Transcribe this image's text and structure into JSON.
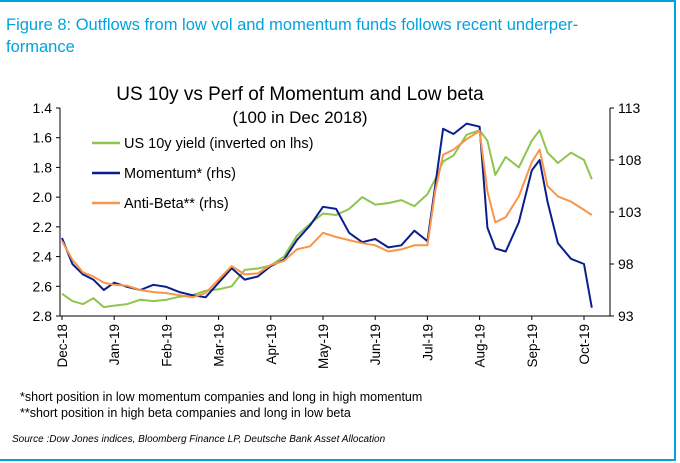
{
  "colors": {
    "brand": "#00a3e0",
    "green": "#8fc44f",
    "navy": "#0b1f8c",
    "orange": "#f7954a"
  },
  "figure_title": "Figure 8: Outflows from low vol and momentum funds follows recent underper-formance",
  "figure_title_line1": "Figure 8: Outflows from low vol and momentum funds follows recent underper-",
  "figure_title_line2": "formance",
  "notes": [
    "*short position in low momentum companies and long in high momentum",
    "**short position in high beta companies and long in low beta"
  ],
  "source": "Source :Dow Jones indices, Bloomberg Finance LP, Deutsche Bank Asset Allocation",
  "chart_data": {
    "type": "line",
    "title": "US 10y vs Perf of Momentum and Low beta",
    "subtitle": "(100 in Dec 2018)",
    "x_categories": [
      "Dec-18",
      "Jan-19",
      "Feb-19",
      "Mar-19",
      "Apr-19",
      "May-19",
      "Jun-19",
      "Jul-19",
      "Aug-19",
      "Sep-19",
      "Oct-19"
    ],
    "y_left": {
      "ticks": [
        "1.4",
        "1.6",
        "1.8",
        "2.0",
        "2.2",
        "2.4",
        "2.6",
        "2.8"
      ],
      "range": [
        2.8,
        1.4
      ],
      "inverted": true
    },
    "y_right": {
      "ticks": [
        "113",
        "108",
        "103",
        "98",
        "93"
      ],
      "range": [
        93,
        113
      ]
    },
    "legend_position": "top-left",
    "grid": false,
    "series": [
      {
        "name": "US 10y yield (inverted on lhs)",
        "axis": "left",
        "color": "#8fc44f",
        "x": [
          0,
          0.2,
          0.4,
          0.6,
          0.8,
          1.0,
          1.25,
          1.5,
          1.75,
          2.0,
          2.25,
          2.5,
          2.75,
          3.0,
          3.25,
          3.5,
          3.75,
          4.0,
          4.25,
          4.5,
          4.75,
          5.0,
          5.25,
          5.5,
          5.75,
          6.0,
          6.25,
          6.5,
          6.75,
          7.0,
          7.15,
          7.3,
          7.5,
          7.75,
          8.0,
          8.15,
          8.3,
          8.5,
          8.75,
          9.0,
          9.15,
          9.3,
          9.5,
          9.75,
          10.0,
          10.15
        ],
        "values": [
          2.65,
          2.7,
          2.72,
          2.68,
          2.74,
          2.73,
          2.72,
          2.69,
          2.7,
          2.69,
          2.67,
          2.66,
          2.63,
          2.62,
          2.6,
          2.49,
          2.48,
          2.46,
          2.4,
          2.26,
          2.18,
          2.11,
          2.12,
          2.08,
          2.0,
          2.05,
          2.04,
          2.02,
          2.06,
          1.98,
          1.88,
          1.76,
          1.72,
          1.58,
          1.55,
          1.62,
          1.85,
          1.73,
          1.8,
          1.62,
          1.55,
          1.7,
          1.77,
          1.7,
          1.75,
          1.88
        ]
      },
      {
        "name": "Momentum* (rhs)",
        "axis": "right",
        "color": "#0b1f8c",
        "x": [
          0,
          0.2,
          0.4,
          0.6,
          0.8,
          1.0,
          1.25,
          1.5,
          1.75,
          2.0,
          2.25,
          2.5,
          2.75,
          3.0,
          3.25,
          3.5,
          3.75,
          4.0,
          4.25,
          4.5,
          4.75,
          5.0,
          5.25,
          5.5,
          5.75,
          6.0,
          6.25,
          6.5,
          6.75,
          7.0,
          7.15,
          7.3,
          7.5,
          7.75,
          8.0,
          8.15,
          8.3,
          8.5,
          8.75,
          9.0,
          9.15,
          9.3,
          9.5,
          9.75,
          10.0,
          10.15
        ],
        "values": [
          100.5,
          98.0,
          97.0,
          96.5,
          95.5,
          96.2,
          95.8,
          95.5,
          96.0,
          95.8,
          95.3,
          95.0,
          94.8,
          96.2,
          97.6,
          96.5,
          96.8,
          97.8,
          98.4,
          100.3,
          101.7,
          103.5,
          103.3,
          101.0,
          100.1,
          100.4,
          99.6,
          99.8,
          101.2,
          100.2,
          105.5,
          111.0,
          110.5,
          111.5,
          111.2,
          101.5,
          99.5,
          99.2,
          102.0,
          107.0,
          108.0,
          104.0,
          100.0,
          98.5,
          98.0,
          93.8
        ]
      },
      {
        "name": "Anti-Beta** (rhs)",
        "axis": "right",
        "color": "#f7954a",
        "x": [
          0,
          0.2,
          0.4,
          0.6,
          0.8,
          1.0,
          1.25,
          1.5,
          1.75,
          2.0,
          2.25,
          2.5,
          2.75,
          3.0,
          3.25,
          3.5,
          3.75,
          4.0,
          4.25,
          4.5,
          4.75,
          5.0,
          5.25,
          5.5,
          5.75,
          6.0,
          6.25,
          6.5,
          6.75,
          7.0,
          7.15,
          7.3,
          7.5,
          7.75,
          8.0,
          8.15,
          8.3,
          8.5,
          8.75,
          9.0,
          9.15,
          9.3,
          9.5,
          9.75,
          10.0,
          10.15
        ],
        "values": [
          100.2,
          98.4,
          97.2,
          96.8,
          96.2,
          96.0,
          95.9,
          95.5,
          95.3,
          95.2,
          95.0,
          94.8,
          95.2,
          96.5,
          97.8,
          97.0,
          97.1,
          97.9,
          98.3,
          99.4,
          99.7,
          101.0,
          100.6,
          100.3,
          100.0,
          99.8,
          99.2,
          99.4,
          99.8,
          99.8,
          105.0,
          108.5,
          109.0,
          110.0,
          110.8,
          105.0,
          102.0,
          102.5,
          104.5,
          107.8,
          109.0,
          105.5,
          104.5,
          104.0,
          103.2,
          102.7
        ]
      }
    ]
  }
}
